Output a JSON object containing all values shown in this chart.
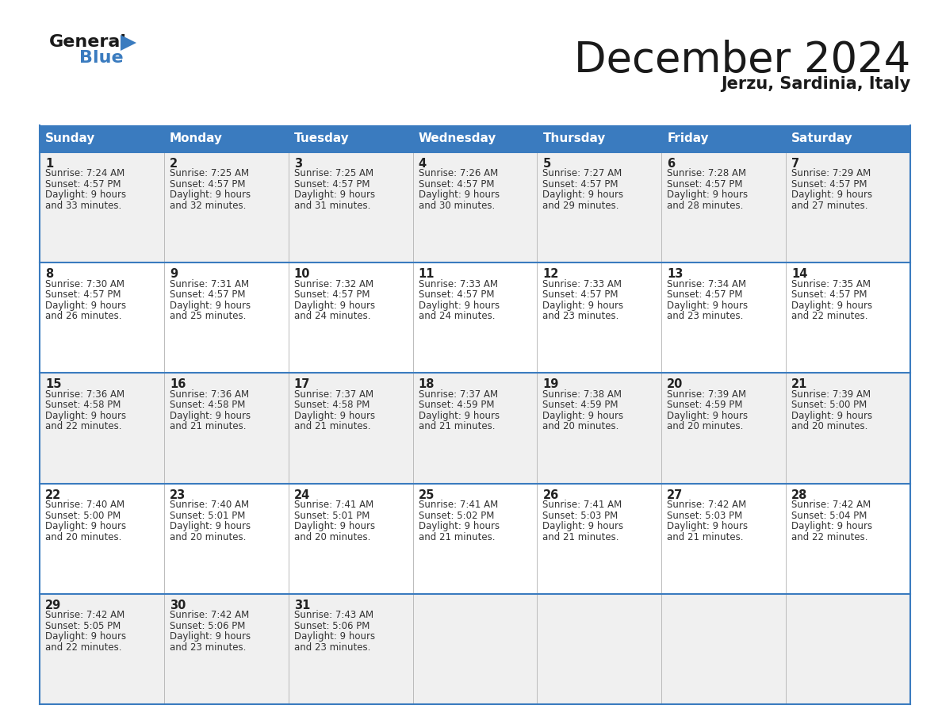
{
  "title": "December 2024",
  "subtitle": "Jerzu, Sardinia, Italy",
  "header_bg": "#3a7bbf",
  "header_text": "#ffffff",
  "row_bg_even": "#f0f0f0",
  "row_bg_odd": "#ffffff",
  "cell_border": "#3a7bbf",
  "cell_text": "#333333",
  "day_num_color": "#222222",
  "days_of_week": [
    "Sunday",
    "Monday",
    "Tuesday",
    "Wednesday",
    "Thursday",
    "Friday",
    "Saturday"
  ],
  "calendar": [
    [
      {
        "day": 1,
        "sunrise": "7:24 AM",
        "sunset": "4:57 PM",
        "daylight": "9 hours",
        "daylight2": "and 33 minutes."
      },
      {
        "day": 2,
        "sunrise": "7:25 AM",
        "sunset": "4:57 PM",
        "daylight": "9 hours",
        "daylight2": "and 32 minutes."
      },
      {
        "day": 3,
        "sunrise": "7:25 AM",
        "sunset": "4:57 PM",
        "daylight": "9 hours",
        "daylight2": "and 31 minutes."
      },
      {
        "day": 4,
        "sunrise": "7:26 AM",
        "sunset": "4:57 PM",
        "daylight": "9 hours",
        "daylight2": "and 30 minutes."
      },
      {
        "day": 5,
        "sunrise": "7:27 AM",
        "sunset": "4:57 PM",
        "daylight": "9 hours",
        "daylight2": "and 29 minutes."
      },
      {
        "day": 6,
        "sunrise": "7:28 AM",
        "sunset": "4:57 PM",
        "daylight": "9 hours",
        "daylight2": "and 28 minutes."
      },
      {
        "day": 7,
        "sunrise": "7:29 AM",
        "sunset": "4:57 PM",
        "daylight": "9 hours",
        "daylight2": "and 27 minutes."
      }
    ],
    [
      {
        "day": 8,
        "sunrise": "7:30 AM",
        "sunset": "4:57 PM",
        "daylight": "9 hours",
        "daylight2": "and 26 minutes."
      },
      {
        "day": 9,
        "sunrise": "7:31 AM",
        "sunset": "4:57 PM",
        "daylight": "9 hours",
        "daylight2": "and 25 minutes."
      },
      {
        "day": 10,
        "sunrise": "7:32 AM",
        "sunset": "4:57 PM",
        "daylight": "9 hours",
        "daylight2": "and 24 minutes."
      },
      {
        "day": 11,
        "sunrise": "7:33 AM",
        "sunset": "4:57 PM",
        "daylight": "9 hours",
        "daylight2": "and 24 minutes."
      },
      {
        "day": 12,
        "sunrise": "7:33 AM",
        "sunset": "4:57 PM",
        "daylight": "9 hours",
        "daylight2": "and 23 minutes."
      },
      {
        "day": 13,
        "sunrise": "7:34 AM",
        "sunset": "4:57 PM",
        "daylight": "9 hours",
        "daylight2": "and 23 minutes."
      },
      {
        "day": 14,
        "sunrise": "7:35 AM",
        "sunset": "4:57 PM",
        "daylight": "9 hours",
        "daylight2": "and 22 minutes."
      }
    ],
    [
      {
        "day": 15,
        "sunrise": "7:36 AM",
        "sunset": "4:58 PM",
        "daylight": "9 hours",
        "daylight2": "and 22 minutes."
      },
      {
        "day": 16,
        "sunrise": "7:36 AM",
        "sunset": "4:58 PM",
        "daylight": "9 hours",
        "daylight2": "and 21 minutes."
      },
      {
        "day": 17,
        "sunrise": "7:37 AM",
        "sunset": "4:58 PM",
        "daylight": "9 hours",
        "daylight2": "and 21 minutes."
      },
      {
        "day": 18,
        "sunrise": "7:37 AM",
        "sunset": "4:59 PM",
        "daylight": "9 hours",
        "daylight2": "and 21 minutes."
      },
      {
        "day": 19,
        "sunrise": "7:38 AM",
        "sunset": "4:59 PM",
        "daylight": "9 hours",
        "daylight2": "and 20 minutes."
      },
      {
        "day": 20,
        "sunrise": "7:39 AM",
        "sunset": "4:59 PM",
        "daylight": "9 hours",
        "daylight2": "and 20 minutes."
      },
      {
        "day": 21,
        "sunrise": "7:39 AM",
        "sunset": "5:00 PM",
        "daylight": "9 hours",
        "daylight2": "and 20 minutes."
      }
    ],
    [
      {
        "day": 22,
        "sunrise": "7:40 AM",
        "sunset": "5:00 PM",
        "daylight": "9 hours",
        "daylight2": "and 20 minutes."
      },
      {
        "day": 23,
        "sunrise": "7:40 AM",
        "sunset": "5:01 PM",
        "daylight": "9 hours",
        "daylight2": "and 20 minutes."
      },
      {
        "day": 24,
        "sunrise": "7:41 AM",
        "sunset": "5:01 PM",
        "daylight": "9 hours",
        "daylight2": "and 20 minutes."
      },
      {
        "day": 25,
        "sunrise": "7:41 AM",
        "sunset": "5:02 PM",
        "daylight": "9 hours",
        "daylight2": "and 21 minutes."
      },
      {
        "day": 26,
        "sunrise": "7:41 AM",
        "sunset": "5:03 PM",
        "daylight": "9 hours",
        "daylight2": "and 21 minutes."
      },
      {
        "day": 27,
        "sunrise": "7:42 AM",
        "sunset": "5:03 PM",
        "daylight": "9 hours",
        "daylight2": "and 21 minutes."
      },
      {
        "day": 28,
        "sunrise": "7:42 AM",
        "sunset": "5:04 PM",
        "daylight": "9 hours",
        "daylight2": "and 22 minutes."
      }
    ],
    [
      {
        "day": 29,
        "sunrise": "7:42 AM",
        "sunset": "5:05 PM",
        "daylight": "9 hours",
        "daylight2": "and 22 minutes."
      },
      {
        "day": 30,
        "sunrise": "7:42 AM",
        "sunset": "5:06 PM",
        "daylight": "9 hours",
        "daylight2": "and 23 minutes."
      },
      {
        "day": 31,
        "sunrise": "7:43 AM",
        "sunset": "5:06 PM",
        "daylight": "9 hours",
        "daylight2": "and 23 minutes."
      },
      null,
      null,
      null,
      null
    ]
  ]
}
